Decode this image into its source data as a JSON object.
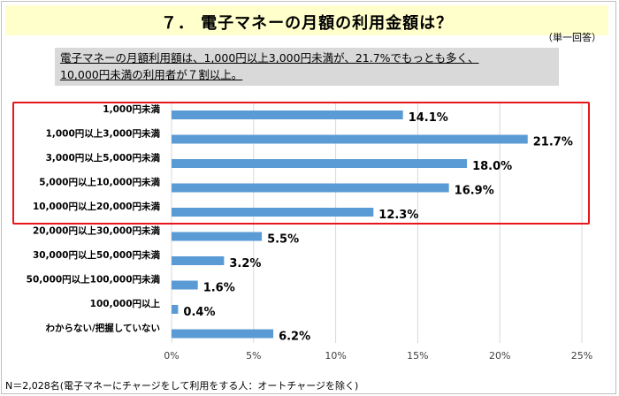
{
  "header": {
    "title": "７． 電子マネーの月額の利用金額は？",
    "note": "（単一回答）"
  },
  "summary": {
    "line1": "電子マネーの月額利用額は、1,000円以上3,000円未満が、21.7%でもっとも多く、",
    "line2": "10,000円未満の利用者が７割以上。"
  },
  "footnote": "N＝2,028名(電子マネーにチャージをして利用をする人：オートチャージを除く)",
  "colors": {
    "bar": "#5b9bd5",
    "highlight": "#e8151b",
    "title_band": "#ffffcc",
    "summary_bg": "#d9d9d9",
    "grid": "#d9d9d9"
  },
  "chart_data": {
    "type": "bar",
    "orientation": "horizontal",
    "title": "７． 電子マネーの月額の利用金額は？",
    "categories": [
      "1,000円未満",
      "1,000円以上3,000円未満",
      "3,000円以上5,000円未満",
      "5,000円以上10,000円未満",
      "10,000円以上20,000円未満",
      "20,000円以上30,000円未満",
      "30,000円以上50,000円未満",
      "50,000円以上100,000円未満",
      "100,000円以上",
      "わからない/把握していない"
    ],
    "values": [
      14.1,
      21.7,
      18.0,
      16.9,
      12.3,
      5.5,
      3.2,
      1.6,
      0.4,
      6.2
    ],
    "value_labels": [
      "14.1%",
      "21.7%",
      "18.0%",
      "16.9%",
      "12.3%",
      "5.5%",
      "3.2%",
      "1.6%",
      "0.4%",
      "6.2%"
    ],
    "xlim": [
      0,
      25
    ],
    "xticks": [
      0,
      5,
      10,
      15,
      20,
      25
    ],
    "xtick_labels": [
      "0%",
      "5%",
      "10%",
      "15%",
      "20%",
      "25%"
    ],
    "xlabel": "",
    "ylabel": "",
    "grid": true,
    "highlighted_categories": [
      0,
      1,
      2,
      3,
      4
    ]
  }
}
